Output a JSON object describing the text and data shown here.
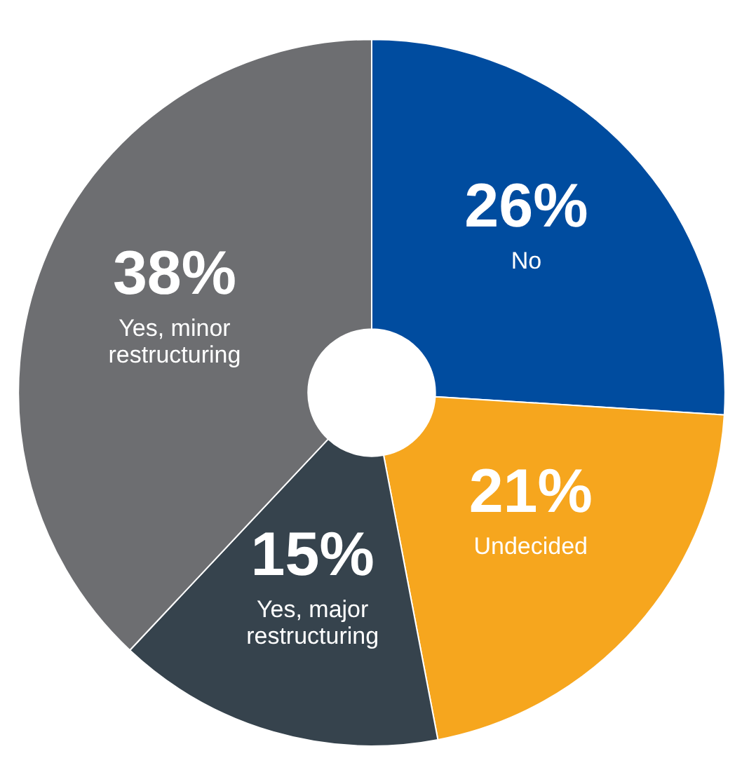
{
  "chart_data": {
    "type": "donut",
    "categories": [
      "No",
      "Undecided",
      "Yes, major restructuring",
      "Yes, minor restructuring"
    ],
    "values": [
      26,
      21,
      15,
      38
    ],
    "value_labels": [
      "26%",
      "21%",
      "15%",
      "38%"
    ],
    "colors": [
      "#004c9f",
      "#f6a61e",
      "#36434d",
      "#6d6e71"
    ]
  }
}
